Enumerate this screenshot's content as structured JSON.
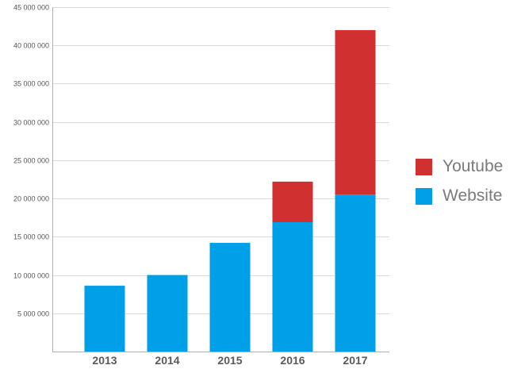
{
  "chart_data": {
    "type": "bar",
    "stacked": true,
    "categories": [
      "2013",
      "2014",
      "2015",
      "2016",
      "2017"
    ],
    "series": [
      {
        "name": "Website",
        "color": "#00a0e9",
        "values": [
          8600000,
          10000000,
          14200000,
          16900000,
          20500000
        ]
      },
      {
        "name": "Youtube",
        "color": "#d03030",
        "values": [
          0,
          0,
          0,
          5300000,
          21500000
        ]
      }
    ],
    "ylim": [
      0,
      45000000
    ],
    "yticks": [
      "5 000 000",
      "10 000 000",
      "15 000 000",
      "20 000 000",
      "25 000 000",
      "30 000 000",
      "35 000 000",
      "40 000 000",
      "45 000 000"
    ],
    "ytick_values": [
      5000000,
      10000000,
      15000000,
      20000000,
      25000000,
      30000000,
      35000000,
      40000000,
      45000000
    ],
    "grid": true,
    "legend_position": "right"
  },
  "legend": {
    "items": [
      {
        "label": "Youtube",
        "color": "#d03030"
      },
      {
        "label": "Website",
        "color": "#00a0e9"
      }
    ]
  }
}
